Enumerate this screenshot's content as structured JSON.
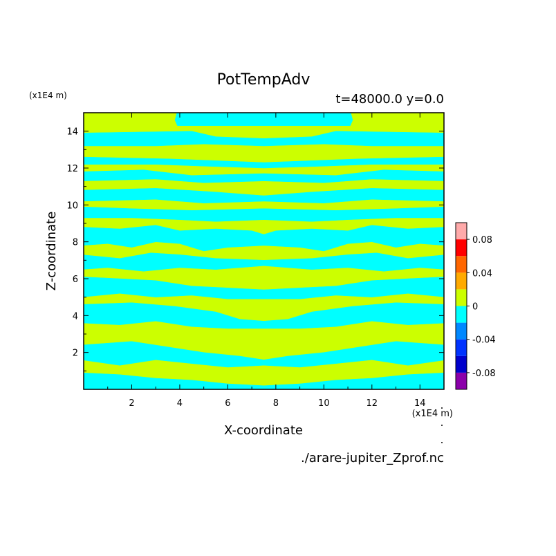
{
  "chart_data": {
    "type": "heatmap",
    "title": "PotTempAdv",
    "subtitle": "t=48000.0 y=0.0",
    "xlabel": "X-coordinate",
    "ylabel": "Z-coordinate",
    "x_unit": "(x1E4 m)",
    "y_unit": "(x1E4 m)",
    "source_file": "./arare-jupiter_Zprof.nc",
    "xlim": [
      0,
      15
    ],
    "ylim": [
      0,
      15
    ],
    "x_ticks": [
      "2",
      "4",
      "6",
      "8",
      "10",
      "12",
      "14"
    ],
    "y_ticks": [
      "2",
      "4",
      "6",
      "8",
      "10",
      "12",
      "14"
    ],
    "colorbar": {
      "tick_labels": [
        "0.08",
        "0.04",
        "0",
        "-0.04",
        "-0.08"
      ],
      "levels": [
        -0.1,
        -0.08,
        -0.06,
        -0.04,
        -0.02,
        0,
        0.02,
        0.04,
        0.06,
        0.08,
        0.1
      ],
      "colors": [
        "#8B00AA",
        "#0000CC",
        "#0033FF",
        "#0088FF",
        "#00FFFF",
        "#CCFF00",
        "#FFAA00",
        "#FF6600",
        "#FF0000",
        "#FFAAAA"
      ]
    },
    "field_description": "Field values alternate between the -0.02 to 0 band (cyan) and the 0 to 0.02 band (yellow-green) in horizontal layers, mirror-symmetric about x=7.5",
    "legend": "colorbar at right",
    "grid": false
  }
}
